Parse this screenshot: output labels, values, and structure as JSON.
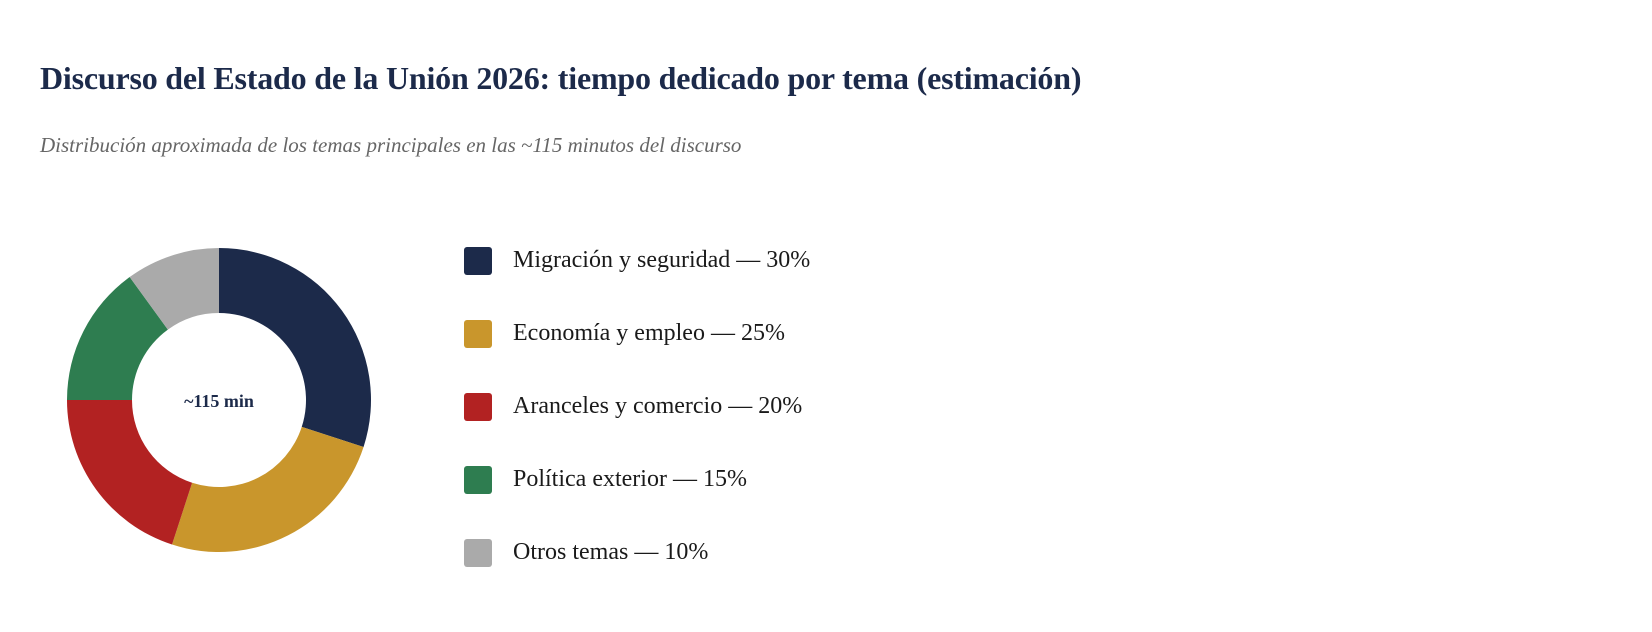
{
  "chart_data": {
    "type": "pie",
    "variant": "donut",
    "title": "Discurso del Estado de la Unión 2026: tiempo dedicado por tema (estimación)",
    "subtitle": "Distribución aproximada de los temas principales en las ~115 minutos del discurso",
    "center_label": "~115 min",
    "categories": [
      "Migración y seguridad",
      "Economía y empleo",
      "Aranceles y comercio",
      "Política exterior",
      "Otros temas"
    ],
    "values": [
      30,
      25,
      20,
      15,
      10
    ],
    "colors": [
      "#1c2a4a",
      "#c9962c",
      "#b22222",
      "#2e7d50",
      "#aaaaaa"
    ],
    "legend_labels": [
      "Migración y seguridad — 30%",
      "Economía y empleo — 25%",
      "Aranceles y comercio — 20%",
      "Política exterior — 15%",
      "Otros temas — 10%"
    ],
    "legend_position": "right"
  }
}
